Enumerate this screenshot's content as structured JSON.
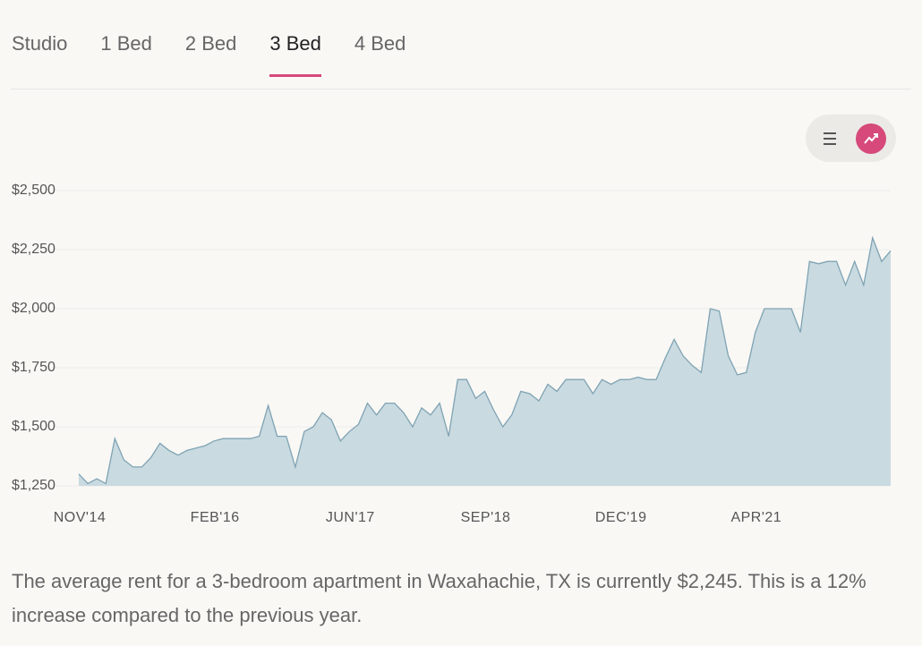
{
  "tabs": [
    "Studio",
    "1 Bed",
    "2 Bed",
    "3 Bed",
    "4 Bed"
  ],
  "active_tab": 3,
  "chart_data": {
    "type": "area",
    "categories": [
      "NOV'14",
      null,
      null,
      null,
      null,
      null,
      null,
      null,
      null,
      null,
      null,
      null,
      null,
      null,
      null,
      "FEB'16",
      null,
      null,
      null,
      null,
      null,
      null,
      null,
      null,
      null,
      null,
      null,
      null,
      null,
      null,
      "JUN'17",
      null,
      null,
      null,
      null,
      null,
      null,
      null,
      null,
      null,
      null,
      null,
      null,
      null,
      null,
      "SEP'18",
      null,
      null,
      null,
      null,
      null,
      null,
      null,
      null,
      null,
      null,
      null,
      null,
      null,
      null,
      "DEC'19",
      null,
      null,
      null,
      null,
      null,
      null,
      null,
      null,
      null,
      null,
      null,
      null,
      null,
      null,
      "APR'21",
      null,
      null,
      null,
      null,
      null,
      null,
      null,
      null,
      null,
      null,
      null,
      null,
      null,
      null,
      null
    ],
    "series": [
      {
        "color": "#7fa3b3",
        "fill": "#c9dae0",
        "values": [
          1300,
          1260,
          1280,
          1260,
          1450,
          1360,
          1330,
          1330,
          1370,
          1430,
          1400,
          1380,
          1400,
          1410,
          1420,
          1440,
          1450,
          1450,
          1450,
          1450,
          1460,
          1590,
          1460,
          1460,
          1330,
          1480,
          1500,
          1560,
          1530,
          1440,
          1480,
          1510,
          1600,
          1550,
          1600,
          1600,
          1560,
          1500,
          1580,
          1550,
          1600,
          1460,
          1700,
          1700,
          1620,
          1650,
          1570,
          1500,
          1550,
          1650,
          1640,
          1610,
          1680,
          1650,
          1700,
          1700,
          1700,
          1640,
          1700,
          1680,
          1700,
          1700,
          1710,
          1700,
          1700,
          1790,
          1870,
          1800,
          1760,
          1730,
          2000,
          1990,
          1800,
          1720,
          1730,
          1900,
          2000,
          2000,
          2000,
          2000,
          1900,
          2200,
          2190,
          2200,
          2200,
          2100,
          2200,
          2100,
          2300,
          2200,
          2245
        ]
      }
    ],
    "ylim": [
      1250,
      2500
    ],
    "yticks": [
      {
        "value": 1250,
        "label": "$1,250"
      },
      {
        "value": 1500,
        "label": "$1,500"
      },
      {
        "value": 1750,
        "label": "$1,750"
      },
      {
        "value": 2000,
        "label": "$2,000"
      },
      {
        "value": 2250,
        "label": "$2,250"
      },
      {
        "value": 2500,
        "label": "$2,500"
      }
    ],
    "grid": true
  },
  "description": "The average rent for a 3-bedroom apartment in Waxahachie, TX is currently $2,245. This is a 12% increase compared to the previous year."
}
